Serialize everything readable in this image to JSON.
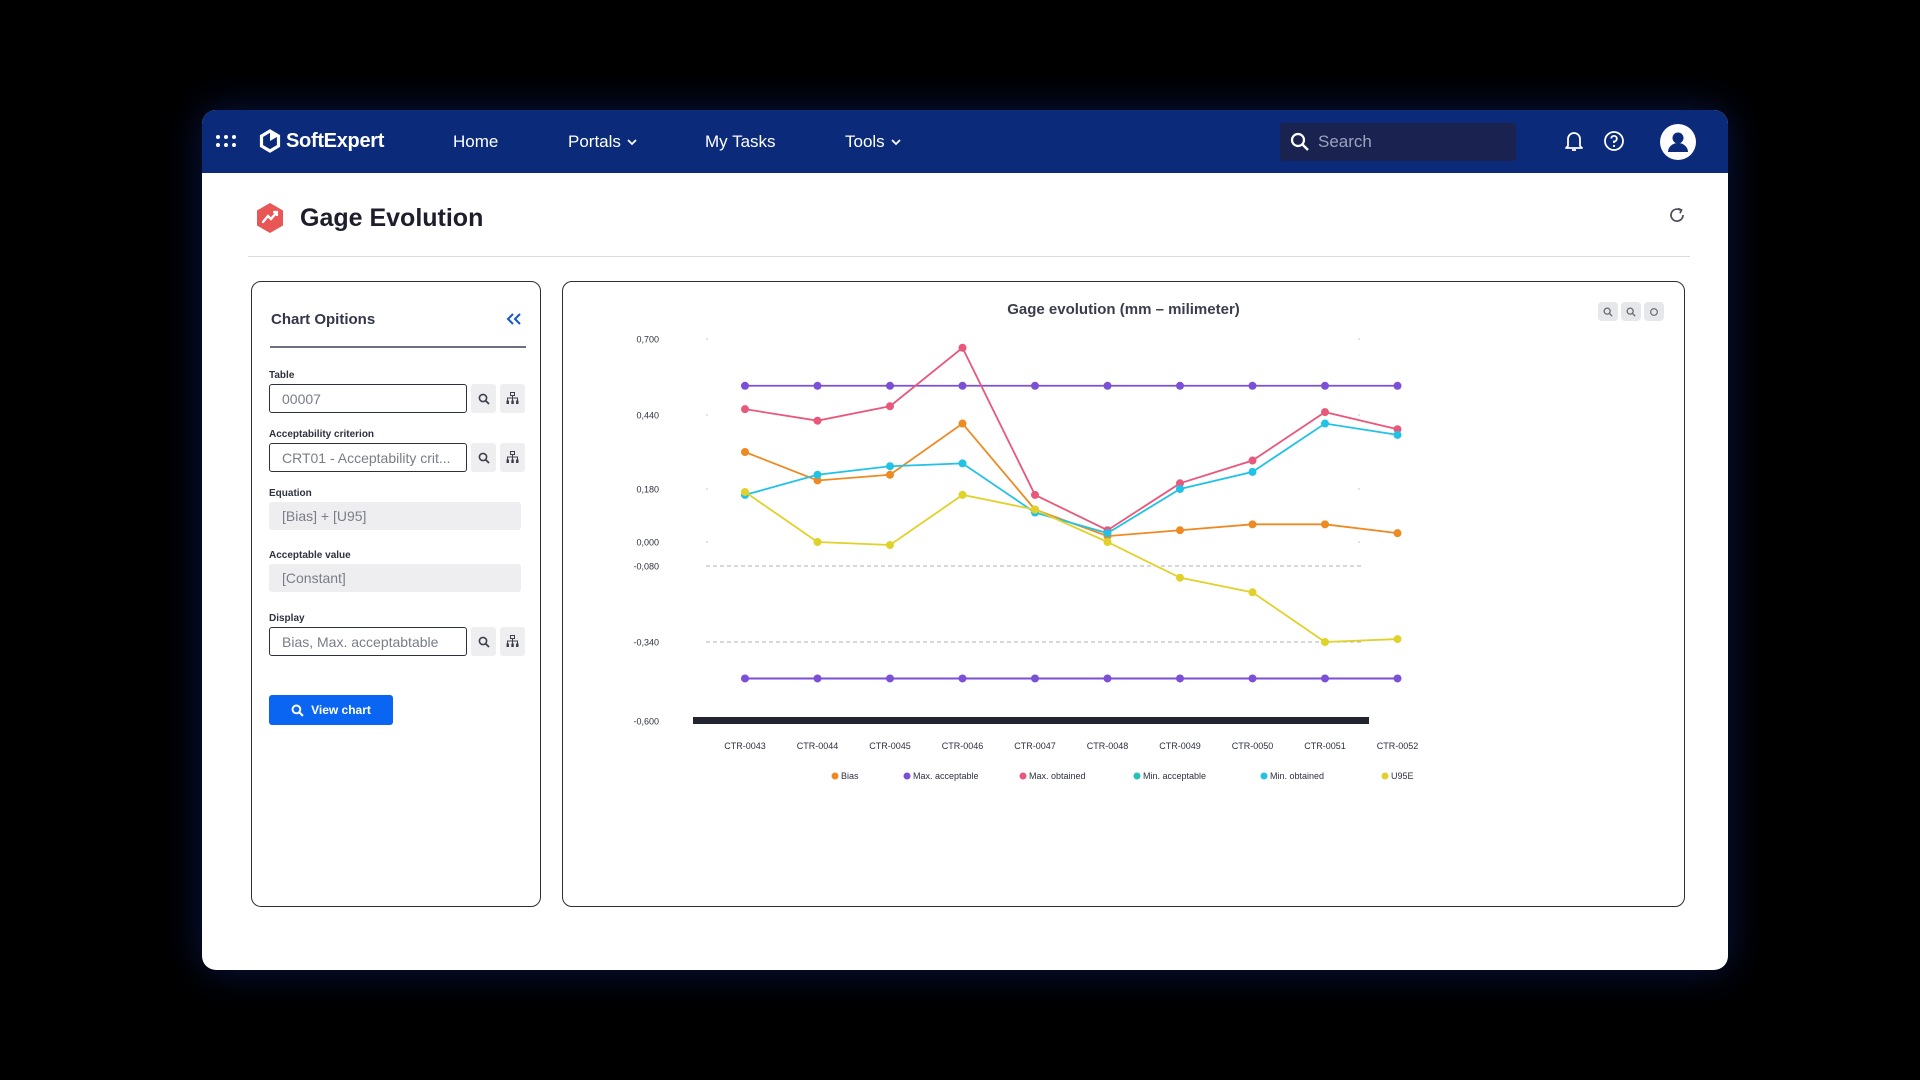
{
  "app": {
    "brand": "SoftExpert",
    "nav": [
      {
        "label": "Home",
        "dropdown": false
      },
      {
        "label": "Portals",
        "dropdown": true
      },
      {
        "label": "My Tasks",
        "dropdown": false
      },
      {
        "label": "Tools",
        "dropdown": true
      }
    ],
    "search_placeholder": "Search",
    "icons": [
      "apps-grid-icon",
      "logo-icon",
      "search-icon",
      "bell-icon",
      "help-icon",
      "user-avatar-icon"
    ],
    "colors": {
      "topbar": "#0b2a7a",
      "accent": "#0a66f2"
    }
  },
  "page": {
    "title": "Gage Evolution"
  },
  "options": {
    "title": "Chart Opitions",
    "table_label": "Table",
    "table_value": "00007",
    "criterion_label": "Acceptability criterion",
    "criterion_value": "CRT01 - Acceptability crit...",
    "equation_label": "Equation",
    "equation_value": "[Bias] + [U95]",
    "acceptable_label": "Acceptable value",
    "acceptable_value": "[Constant]",
    "display_label": "Display",
    "display_value": "Bias, Max. acceptabtable",
    "view_button": "View chart"
  },
  "chart_data": {
    "type": "line",
    "title": "Gage evolution (mm – milimeter)",
    "categories": [
      "CTR-0043",
      "CTR-0044",
      "CTR-0045",
      "CTR-0046",
      "CTR-0047",
      "CTR-0048",
      "CTR-0049",
      "CTR-0050",
      "CTR-0051",
      "CTR-0052"
    ],
    "y_ticks": [
      0.7,
      0.44,
      0.18,
      0.0,
      -0.08,
      -0.34,
      -0.6
    ],
    "y_tick_labels": [
      "0,700",
      "0,440",
      "0,180",
      "0,000",
      "-0,080",
      "-0,340",
      "-0,600"
    ],
    "ylim": [
      -0.6,
      0.7
    ],
    "reference_lines": [
      -0.08,
      -0.34
    ],
    "legend_position": "bottom",
    "series": [
      {
        "name": "Bias",
        "color": "#ee8a22",
        "values": [
          0.31,
          0.21,
          0.23,
          0.41,
          0.11,
          0.02,
          0.04,
          0.06,
          0.06,
          0.03
        ]
      },
      {
        "name": "Max. acceptable",
        "color": "#7b4fd6",
        "values": [
          0.54,
          0.54,
          0.54,
          0.54,
          0.54,
          0.54,
          0.54,
          0.54,
          0.54,
          0.54
        ]
      },
      {
        "name": "Max. obtained",
        "color": "#e9577a",
        "values": [
          0.46,
          0.42,
          0.47,
          0.67,
          0.16,
          0.04,
          0.2,
          0.28,
          0.45,
          0.39
        ]
      },
      {
        "name": "Min. acceptable",
        "color": "#20c4b4",
        "values": [
          -0.46,
          -0.46,
          -0.46,
          -0.46,
          -0.46,
          -0.46,
          -0.46,
          -0.46,
          -0.46,
          -0.46
        ]
      },
      {
        "name": "Min. obtained",
        "color": "#22c2e6",
        "values": [
          0.16,
          0.23,
          0.26,
          0.27,
          0.1,
          0.03,
          0.18,
          0.24,
          0.41,
          0.37
        ]
      },
      {
        "name": "U95E",
        "color": "#e0d22a",
        "values": [
          0.17,
          0.0,
          -0.01,
          0.16,
          0.11,
          0.0,
          -0.12,
          -0.17,
          -0.34,
          -0.33
        ]
      }
    ],
    "markers_series_override": {
      "Min. acceptable": "#7b4fd6"
    }
  }
}
